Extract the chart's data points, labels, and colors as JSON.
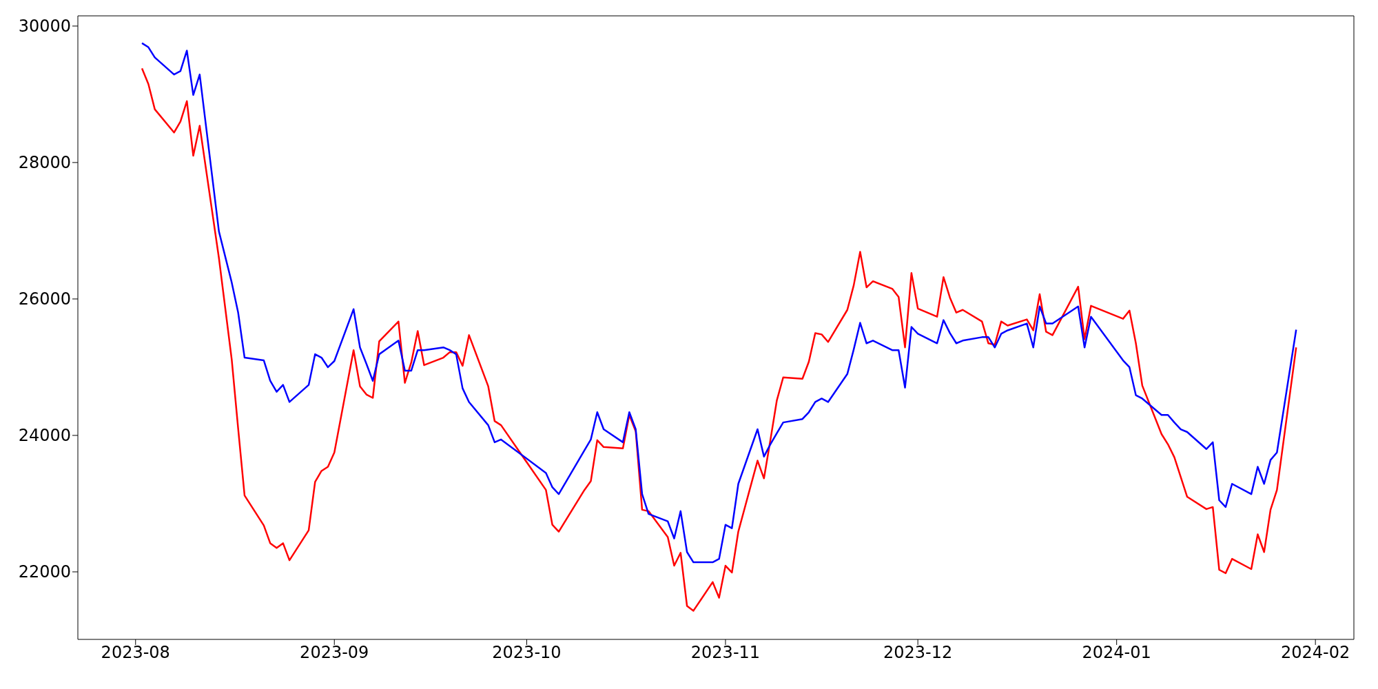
{
  "chart_data": {
    "type": "line",
    "x": [
      "2023-08-02",
      "2023-08-03",
      "2023-08-04",
      "2023-08-07",
      "2023-08-08",
      "2023-08-09",
      "2023-08-10",
      "2023-08-11",
      "2023-08-14",
      "2023-08-16",
      "2023-08-17",
      "2023-08-18",
      "2023-08-21",
      "2023-08-22",
      "2023-08-23",
      "2023-08-24",
      "2023-08-25",
      "2023-08-28",
      "2023-08-29",
      "2023-08-30",
      "2023-08-31",
      "2023-09-01",
      "2023-09-04",
      "2023-09-05",
      "2023-09-06",
      "2023-09-07",
      "2023-09-08",
      "2023-09-11",
      "2023-09-12",
      "2023-09-13",
      "2023-09-14",
      "2023-09-15",
      "2023-09-18",
      "2023-09-19",
      "2023-09-20",
      "2023-09-21",
      "2023-09-22",
      "2023-09-25",
      "2023-09-26",
      "2023-09-27",
      "2023-10-04",
      "2023-10-05",
      "2023-10-06",
      "2023-10-10",
      "2023-10-11",
      "2023-10-12",
      "2023-10-13",
      "2023-10-16",
      "2023-10-17",
      "2023-10-18",
      "2023-10-19",
      "2023-10-20",
      "2023-10-23",
      "2023-10-24",
      "2023-10-25",
      "2023-10-26",
      "2023-10-27",
      "2023-10-30",
      "2023-10-31",
      "2023-11-01",
      "2023-11-02",
      "2023-11-03",
      "2023-11-06",
      "2023-11-07",
      "2023-11-08",
      "2023-11-09",
      "2023-11-10",
      "2023-11-13",
      "2023-11-14",
      "2023-11-15",
      "2023-11-16",
      "2023-11-17",
      "2023-11-20",
      "2023-11-21",
      "2023-11-22",
      "2023-11-23",
      "2023-11-24",
      "2023-11-27",
      "2023-11-28",
      "2023-11-29",
      "2023-11-30",
      "2023-12-01",
      "2023-12-04",
      "2023-12-05",
      "2023-12-06",
      "2023-12-07",
      "2023-12-08",
      "2023-12-11",
      "2023-12-12",
      "2023-12-13",
      "2023-12-14",
      "2023-12-15",
      "2023-12-18",
      "2023-12-19",
      "2023-12-20",
      "2023-12-21",
      "2023-12-22",
      "2023-12-26",
      "2023-12-27",
      "2023-12-28",
      "2024-01-02",
      "2024-01-03",
      "2024-01-04",
      "2024-01-05",
      "2024-01-08",
      "2024-01-09",
      "2024-01-10",
      "2024-01-11",
      "2024-01-12",
      "2024-01-15",
      "2024-01-16",
      "2024-01-17",
      "2024-01-18",
      "2024-01-19",
      "2024-01-22",
      "2024-01-23",
      "2024-01-24",
      "2024-01-25",
      "2024-01-26",
      "2024-01-29"
    ],
    "series": [
      {
        "color": "#ff0000",
        "values": [
          29380,
          29150,
          28780,
          28440,
          28600,
          28900,
          28100,
          28540,
          26600,
          25110,
          24100,
          23120,
          22680,
          22420,
          22350,
          22420,
          22170,
          22610,
          23320,
          23480,
          23540,
          23750,
          25250,
          24720,
          24600,
          24550,
          25380,
          25670,
          24770,
          25070,
          25530,
          25030,
          25140,
          25220,
          25220,
          25020,
          25470,
          24720,
          24210,
          24150,
          23200,
          22690,
          22590,
          23200,
          23330,
          23930,
          23830,
          23810,
          24300,
          24060,
          22910,
          22890,
          22510,
          22090,
          22280,
          21500,
          21430,
          21850,
          21620,
          22090,
          21990,
          22590,
          23630,
          23370,
          23930,
          24510,
          24850,
          24830,
          25080,
          25500,
          25480,
          25370,
          25840,
          26200,
          26690,
          26170,
          26260,
          26150,
          26030,
          25290,
          26380,
          25860,
          25740,
          26320,
          26020,
          25800,
          25840,
          25670,
          25350,
          25330,
          25670,
          25610,
          25700,
          25540,
          26070,
          25520,
          25470,
          26180,
          25410,
          25900,
          25710,
          25830,
          25350,
          24730,
          24020,
          23870,
          23680,
          23390,
          23100,
          22920,
          22950,
          22030,
          21980,
          22190,
          22040,
          22550,
          22290,
          22910,
          23200,
          25290
        ]
      },
      {
        "color": "#0000ff",
        "values": [
          29750,
          29690,
          29540,
          29290,
          29340,
          29640,
          28990,
          29290,
          26990,
          26240,
          25800,
          25140,
          25100,
          24800,
          24640,
          24740,
          24490,
          24740,
          25190,
          25140,
          25000,
          25090,
          25850,
          25290,
          25050,
          24800,
          25190,
          25390,
          24950,
          24950,
          25250,
          25250,
          25290,
          25250,
          25190,
          24690,
          24490,
          24150,
          23900,
          23940,
          23450,
          23240,
          23140,
          23780,
          23940,
          24340,
          24090,
          23900,
          24340,
          24090,
          23140,
          22850,
          22740,
          22490,
          22890,
          22290,
          22140,
          22140,
          22190,
          22690,
          22640,
          23290,
          24090,
          23690,
          23870,
          24030,
          24190,
          24240,
          24340,
          24490,
          24540,
          24490,
          24900,
          25260,
          25650,
          25350,
          25390,
          25250,
          25250,
          24700,
          25590,
          25490,
          25350,
          25690,
          25500,
          25350,
          25390,
          25440,
          25440,
          25290,
          25490,
          25540,
          25640,
          25290,
          25890,
          25640,
          25640,
          25890,
          25290,
          25740,
          25100,
          25000,
          24590,
          24540,
          24300,
          24300,
          24190,
          24090,
          24050,
          23800,
          23900,
          23050,
          22950,
          23290,
          23140,
          23540,
          23290,
          23640,
          23750,
          25550
        ]
      }
    ],
    "xlim": [
      "2023-07-23",
      "2024-02-07"
    ],
    "xticks": [
      "2023-08",
      "2023-09",
      "2023-10",
      "2023-11",
      "2023-12",
      "2024-01",
      "2024-02"
    ],
    "ylim": [
      21010,
      30150
    ],
    "yticks": [
      22000,
      24000,
      26000,
      28000,
      30000
    ],
    "grid": false,
    "legend": false,
    "marker": "none",
    "line_style": "solid"
  }
}
